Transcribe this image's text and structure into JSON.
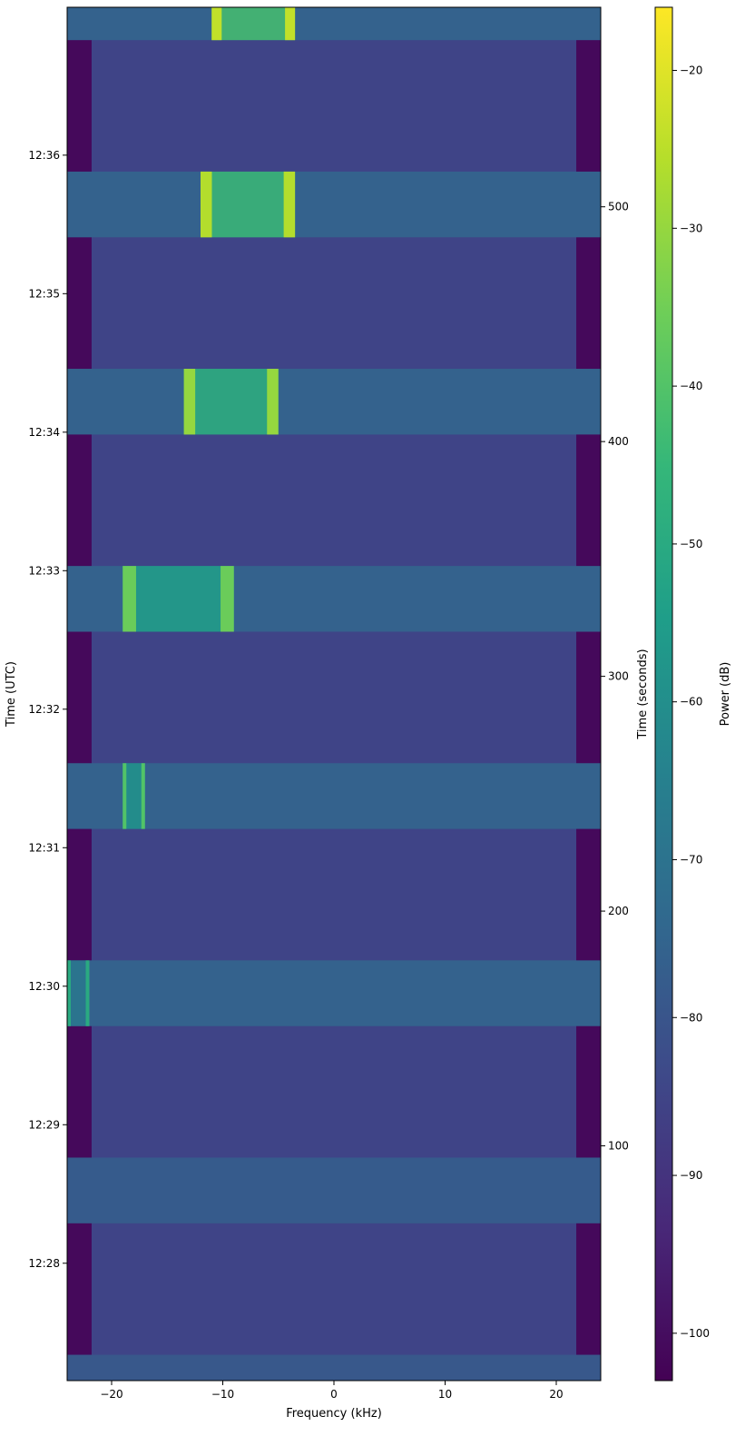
{
  "chart_data": {
    "type": "heatmap",
    "xlabel": "Frequency (kHz)",
    "ylabel_left": "Time (UTC)",
    "ylabel_right": "Time (seconds)",
    "colorbar_label": "Power (dB)",
    "xlim": [
      -24,
      24
    ],
    "ylim_seconds": [
      0,
      585
    ],
    "x_ticks": [
      -20,
      -10,
      0,
      10,
      20
    ],
    "x_tick_labels": [
      "−20",
      "−10",
      "0",
      "10",
      "20"
    ],
    "y_right_ticks": [
      100,
      200,
      300,
      400,
      500
    ],
    "y_right_tick_labels": [
      "100",
      "200",
      "300",
      "400",
      "500"
    ],
    "y_left_ticks_seconds": [
      50,
      109,
      168,
      227,
      286,
      345,
      404,
      463,
      522
    ],
    "y_left_tick_labels": [
      "12:28",
      "12:29",
      "12:30",
      "12:31",
      "12:32",
      "12:33",
      "12:34",
      "12:35",
      "12:36"
    ],
    "colorbar_range_db": [
      -103,
      -16
    ],
    "colorbar_ticks": [
      -100,
      -90,
      -80,
      -70,
      -60,
      -50,
      -40,
      -30,
      -20
    ],
    "colorbar_tick_labels": [
      "−100",
      "−90",
      "−80",
      "−70",
      "−60",
      "−50",
      "−40",
      "−30",
      "−20"
    ],
    "colormap": [
      "#440154",
      "#482878",
      "#3e4989",
      "#31688e",
      "#26828e",
      "#1f9e89",
      "#35b779",
      "#6ece58",
      "#b5de2b",
      "#fde725"
    ],
    "background_db": -85,
    "bright_bands": [
      {
        "t_start": 0,
        "t_end": 11,
        "level_db": -79
      },
      {
        "t_start": 67,
        "t_end": 95,
        "level_db": -78
      },
      {
        "t_start": 151,
        "t_end": 179,
        "level_db": -76
      },
      {
        "t_start": 235,
        "t_end": 263,
        "level_db": -76
      },
      {
        "t_start": 319,
        "t_end": 347,
        "level_db": -76
      },
      {
        "t_start": 403,
        "t_end": 431,
        "level_db": -76
      },
      {
        "t_start": 487,
        "t_end": 515,
        "level_db": -76
      },
      {
        "t_start": 571,
        "t_end": 585,
        "level_db": -76
      }
    ],
    "strong_signals": [
      {
        "t_start": 571,
        "t_end": 585,
        "f_start": -11,
        "f_end": -3.5,
        "level_db": -24
      },
      {
        "t_start": 487,
        "t_end": 515,
        "f_start": -12,
        "f_end": -3.5,
        "level_db": -26
      },
      {
        "t_start": 403,
        "t_end": 431,
        "f_start": -13.5,
        "f_end": -5,
        "level_db": -30
      },
      {
        "t_start": 319,
        "t_end": 347,
        "f_start": -19,
        "f_end": -9,
        "level_db": -36
      },
      {
        "t_start": 235,
        "t_end": 263,
        "f_start": -19,
        "f_end": -17,
        "level_db": -40
      },
      {
        "t_start": 151,
        "t_end": 179,
        "f_start": -24,
        "f_end": -22,
        "level_db": -50
      }
    ]
  }
}
